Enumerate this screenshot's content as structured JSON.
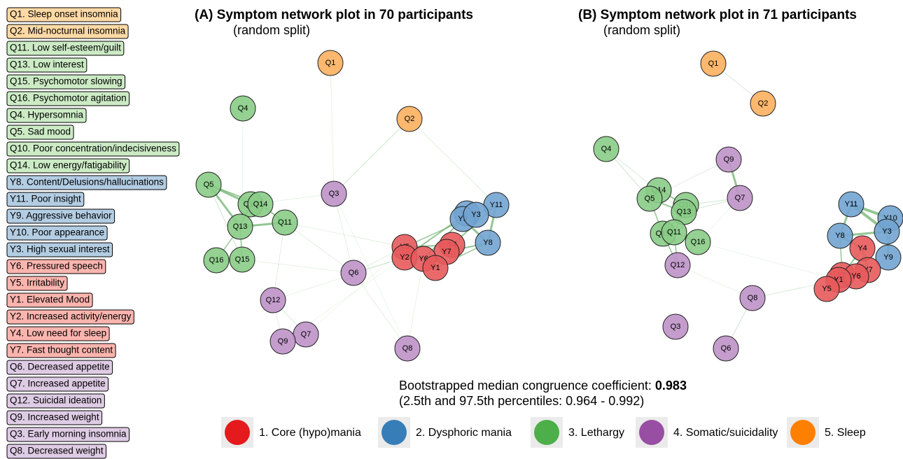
{
  "legend_list": [
    {
      "text": "Q1. Sleep onset insomnia",
      "group": 4
    },
    {
      "text": "Q2. Mid-nocturnal insomnia",
      "group": 4
    },
    {
      "text": "Q11. Low self-esteem/guilt",
      "group": 2
    },
    {
      "text": "Q13. Low interest",
      "group": 2
    },
    {
      "text": "Q15. Psychomotor slowing",
      "group": 2
    },
    {
      "text": "Q16. Psychomotor agitation",
      "group": 2
    },
    {
      "text": "Q4. Hypersomnia",
      "group": 2
    },
    {
      "text": "Q5. Sad mood",
      "group": 2
    },
    {
      "text": "Q10. Poor concentration/indecisiveness",
      "group": 2
    },
    {
      "text": "Q14. Low energy/fatigability",
      "group": 2
    },
    {
      "text": "Y8. Content/Delusions/hallucinations",
      "group": 1
    },
    {
      "text": "Y11. Poor insight",
      "group": 1
    },
    {
      "text": "Y9. Aggressive behavior",
      "group": 1
    },
    {
      "text": "Y10. Poor appearance",
      "group": 1
    },
    {
      "text": "Y3. High sexual interest",
      "group": 1
    },
    {
      "text": "Y6. Pressured speech",
      "group": 0
    },
    {
      "text": "Y5. Irritability",
      "group": 0
    },
    {
      "text": "Y1. Elevated Mood",
      "group": 0
    },
    {
      "text": "Y2. Increased activity/energy",
      "group": 0
    },
    {
      "text": "Y4. Low need for sleep",
      "group": 0
    },
    {
      "text": "Y7. Fast thought content",
      "group": 0
    },
    {
      "text": "Q6. Decreased appetite",
      "group": 3
    },
    {
      "text": "Q7. Increased appetite",
      "group": 3
    },
    {
      "text": "Q12. Suicidal ideation",
      "group": 3
    },
    {
      "text": "Q9. Increased weight",
      "group": 3
    },
    {
      "text": "Q3. Early morning insomnia",
      "group": 3
    },
    {
      "text": "Q8. Decreased weight",
      "group": 3
    }
  ],
  "groups": [
    {
      "label": "1. Core (hypo)mania",
      "color": "#e41a1c",
      "node_color": "#e85a5c",
      "light": "#fbb4ae"
    },
    {
      "label": "2. Dysphoric mania",
      "color": "#377eb8",
      "node_color": "#72a4d2",
      "light": "#b3cde3"
    },
    {
      "label": "3. Lethargy",
      "color": "#4daf4a",
      "node_color": "#88cc86",
      "light": "#ccebc5"
    },
    {
      "label": "4. Somatic/suicidality",
      "color": "#984ea3",
      "node_color": "#be92c8",
      "light": "#decbe4"
    },
    {
      "label": "5. Sleep",
      "color": "#ff7f00",
      "node_color": "#fbb05e",
      "light": "#fed9a6"
    }
  ],
  "network_a": {
    "title": "(A) Symptom network plot in 70 participants",
    "subtitle": "(random split)",
    "nodes": [
      {
        "label": "Q1",
        "group": 4
      },
      {
        "label": "Q4",
        "group": 2
      },
      {
        "label": "Q2",
        "group": 4
      },
      {
        "label": "Q5",
        "group": 2
      },
      {
        "label": "Q10",
        "group": 2
      },
      {
        "label": "Q14",
        "group": 2
      },
      {
        "label": "Q3",
        "group": 3
      },
      {
        "label": "Q13",
        "group": 2
      },
      {
        "label": "Q11",
        "group": 2
      },
      {
        "label": "Y11",
        "group": 1
      },
      {
        "label": "Y10",
        "group": 1
      },
      {
        "label": "Y9",
        "group": 1
      },
      {
        "label": "Y3",
        "group": 1
      },
      {
        "label": "Y8",
        "group": 1
      },
      {
        "label": "Y5",
        "group": 0
      },
      {
        "label": "Y4",
        "group": 0
      },
      {
        "label": "Y7",
        "group": 0
      },
      {
        "label": "Y2",
        "group": 0
      },
      {
        "label": "Y6",
        "group": 0
      },
      {
        "label": "Y1",
        "group": 0
      },
      {
        "label": "Q16",
        "group": 2
      },
      {
        "label": "Q15",
        "group": 2
      },
      {
        "label": "Q6",
        "group": 3
      },
      {
        "label": "Q12",
        "group": 3
      },
      {
        "label": "Q7",
        "group": 3
      },
      {
        "label": "Q9",
        "group": 3
      },
      {
        "label": "Q8",
        "group": 3
      }
    ]
  },
  "network_b": {
    "title": "(B) Symptom network plot in 71 participants",
    "subtitle": "(random split)",
    "nodes": [
      {
        "label": "Q1",
        "group": 4
      },
      {
        "label": "Q2",
        "group": 4
      },
      {
        "label": "Q4",
        "group": 2
      },
      {
        "label": "Q9",
        "group": 3
      },
      {
        "label": "Q14",
        "group": 2
      },
      {
        "label": "Q5",
        "group": 2
      },
      {
        "label": "Q10",
        "group": 2
      },
      {
        "label": "Q13",
        "group": 2
      },
      {
        "label": "Q7",
        "group": 3
      },
      {
        "label": "Y11",
        "group": 1
      },
      {
        "label": "Y10",
        "group": 1
      },
      {
        "label": "Y3",
        "group": 1
      },
      {
        "label": "Y8",
        "group": 1
      },
      {
        "label": "Q15",
        "group": 2
      },
      {
        "label": "Q11",
        "group": 2
      },
      {
        "label": "Q16",
        "group": 2
      },
      {
        "label": "Y4",
        "group": 0
      },
      {
        "label": "Y9",
        "group": 1
      },
      {
        "label": "Q12",
        "group": 3
      },
      {
        "label": "Y7",
        "group": 0
      },
      {
        "label": "Y2",
        "group": 0
      },
      {
        "label": "Y6",
        "group": 0
      },
      {
        "label": "Y1",
        "group": 0
      },
      {
        "label": "Y5",
        "group": 0
      },
      {
        "label": "Q8",
        "group": 3
      },
      {
        "label": "Q3",
        "group": 3
      },
      {
        "label": "Q6",
        "group": 3
      }
    ]
  },
  "summary": {
    "line1": "Bootstrapped median congruence coefficient: ",
    "line1_value": "0.983",
    "line2": "(2.5th and 97.5th percentiles: 0.964 - 0.992)"
  }
}
